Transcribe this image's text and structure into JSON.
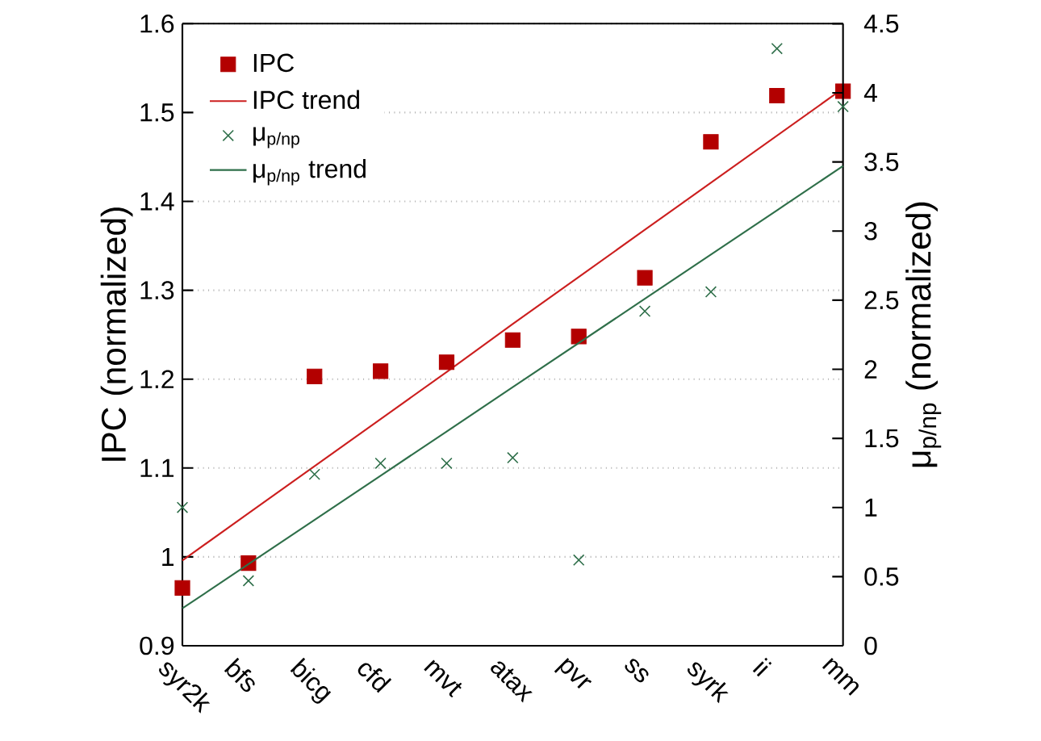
{
  "chart_data": {
    "type": "scatter",
    "ylabel": "IPC (normalized)",
    "y2label": "μ$_{p/np}$ (normalized)",
    "categories": [
      "syr2k",
      "bfs",
      "bicg",
      "cfd",
      "mvt",
      "atax",
      "pvr",
      "ss",
      "syrk",
      "ii",
      "mm"
    ],
    "series": [
      {
        "name": "IPC",
        "marker": "square",
        "color": "#b30000",
        "values": [
          0.965,
          0.993,
          1.203,
          1.209,
          1.219,
          1.244,
          1.248,
          1.314,
          1.467,
          1.519,
          1.524
        ]
      },
      {
        "name": "IPC trend",
        "type": "line",
        "marker": "none",
        "color": "#cc1f1f",
        "values": [
          0.996,
          1.049,
          1.102,
          1.155,
          1.208,
          1.262,
          1.315,
          1.368,
          1.421,
          1.474,
          1.527
        ]
      },
      {
        "name": "μ$_{p/np}$",
        "marker": "cross",
        "axis": "y2",
        "color": "#2f6f4a",
        "values": [
          1.0,
          0.47,
          1.24,
          1.32,
          1.32,
          1.36,
          0.62,
          2.42,
          2.56,
          4.32,
          3.9
        ]
      },
      {
        "name": "μ$_{p/np}$ trend",
        "type": "line",
        "marker": "none",
        "axis": "y2",
        "color": "#2f6f4a",
        "values": [
          0.27,
          0.59,
          0.91,
          1.23,
          1.55,
          1.87,
          2.19,
          2.51,
          2.83,
          3.15,
          3.47
        ]
      }
    ],
    "ylim": [
      0.9,
      1.6
    ],
    "yticks": [
      0.9,
      1,
      1.1,
      1.2,
      1.3,
      1.4,
      1.5,
      1.6
    ],
    "y2lim": [
      0,
      4.5
    ],
    "y2ticks": [
      0,
      0.5,
      1,
      1.5,
      2,
      2.5,
      3,
      3.5,
      4,
      4.5
    ],
    "grid": "y",
    "legend": "top left"
  }
}
